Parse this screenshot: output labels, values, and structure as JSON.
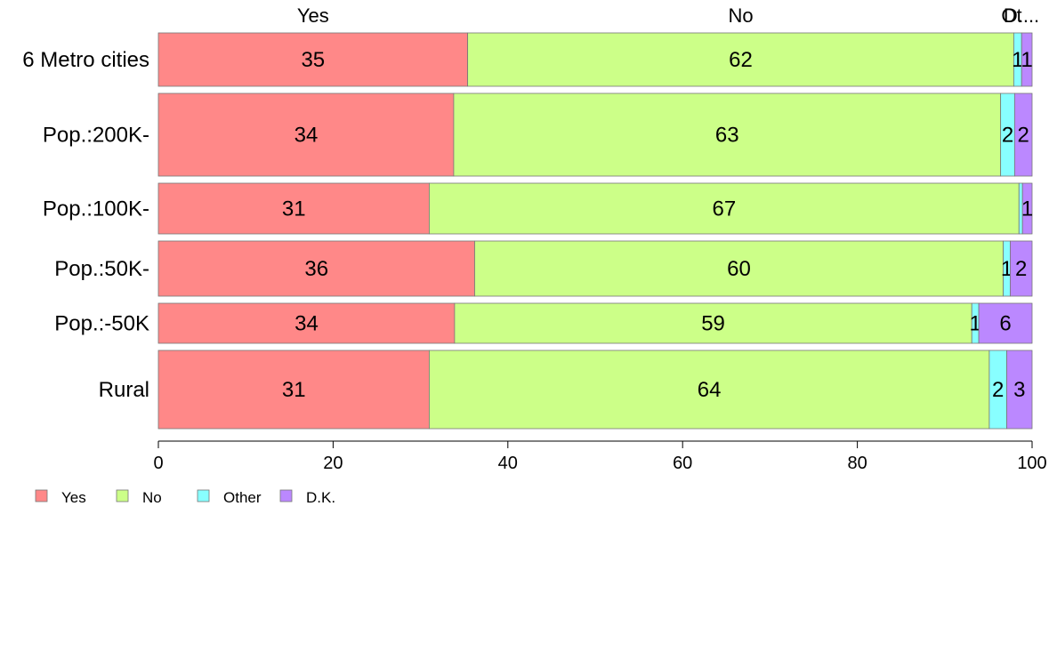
{
  "chart_data": {
    "type": "bar",
    "orientation": "horizontal",
    "stacked": true,
    "categories": [
      "6 Metro cities",
      "Pop.:200K-",
      "Pop.:100K-",
      "Pop.:50K-",
      "Pop.:-50K",
      "Rural"
    ],
    "series": [
      {
        "name": "Yes",
        "color": "#ff8888",
        "values": [
          35.4,
          33.8,
          31.0,
          36.2,
          33.9,
          31.0
        ],
        "labels": [
          "35",
          "34",
          "31",
          "36",
          "34",
          "31"
        ]
      },
      {
        "name": "No",
        "color": "#ccff88",
        "values": [
          62.5,
          62.6,
          67.5,
          60.5,
          59.2,
          64.1
        ],
        "labels": [
          "62",
          "63",
          "67",
          "60",
          "59",
          "64"
        ]
      },
      {
        "name": "Other",
        "color": "#88ffff",
        "values": [
          0.9,
          1.6,
          0.4,
          0.8,
          0.8,
          2.0
        ],
        "labels": [
          "1",
          "2",
          "",
          "1",
          "1",
          "2"
        ]
      },
      {
        "name": "D.K.",
        "color": "#bb88ff",
        "values": [
          1.2,
          2.0,
          1.1,
          2.5,
          6.1,
          2.9
        ],
        "labels": [
          "1",
          "2",
          "1",
          "2",
          "6",
          "3"
        ]
      }
    ],
    "top_labels": [
      "Yes",
      "No",
      "Ot",
      "D...."
    ],
    "xlim": [
      0,
      100
    ],
    "xticks": [
      "0",
      "20",
      "40",
      "60",
      "80",
      "100"
    ],
    "legend": {
      "placement": "bottom-left",
      "entries": [
        "Yes",
        "No",
        "Other",
        "D.K."
      ]
    },
    "grid": false
  }
}
